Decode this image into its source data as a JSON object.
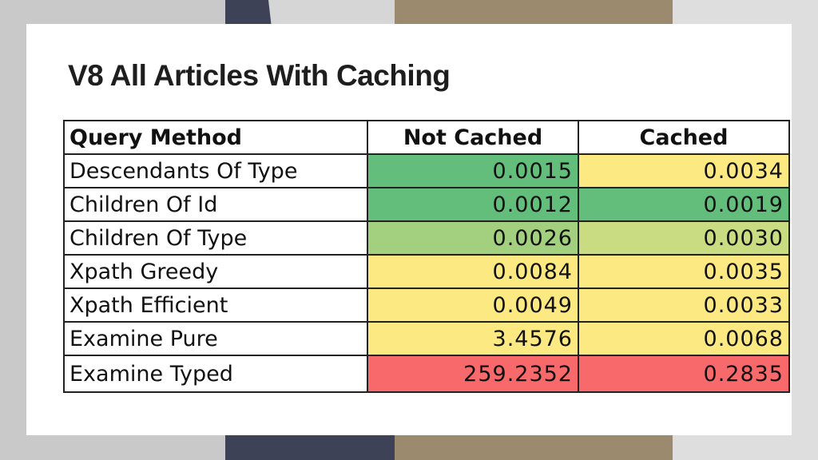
{
  "title": "V8 All Articles With Caching",
  "table": {
    "headers": [
      "Query Method",
      "Not Cached",
      "Cached"
    ],
    "rows": [
      {
        "method": "Descendants Of Type",
        "not_cached": "0.0015",
        "cached": "0.0034",
        "not_cached_color": "#63be7b",
        "cached_color": "#fde982"
      },
      {
        "method": "Children Of Id",
        "not_cached": "0.0012",
        "cached": "0.0019",
        "not_cached_color": "#63be7b",
        "cached_color": "#63be7b"
      },
      {
        "method": "Children Of Type",
        "not_cached": "0.0026",
        "cached": "0.0030",
        "not_cached_color": "#a2d07f",
        "cached_color": "#c9dc81"
      },
      {
        "method": "Xpath Greedy",
        "not_cached": "0.0084",
        "cached": "0.0035",
        "not_cached_color": "#fde982",
        "cached_color": "#fde982"
      },
      {
        "method": "Xpath Efficient",
        "not_cached": "0.0049",
        "cached": "0.0033",
        "not_cached_color": "#fde982",
        "cached_color": "#fde982"
      },
      {
        "method": "Examine Pure",
        "not_cached": "3.4576",
        "cached": "0.0068",
        "not_cached_color": "#fde982",
        "cached_color": "#fde982"
      },
      {
        "method": "Examine Typed",
        "not_cached": "259.2352",
        "cached": "0.2835",
        "not_cached_color": "#f8696b",
        "cached_color": "#f8696b"
      }
    ]
  }
}
